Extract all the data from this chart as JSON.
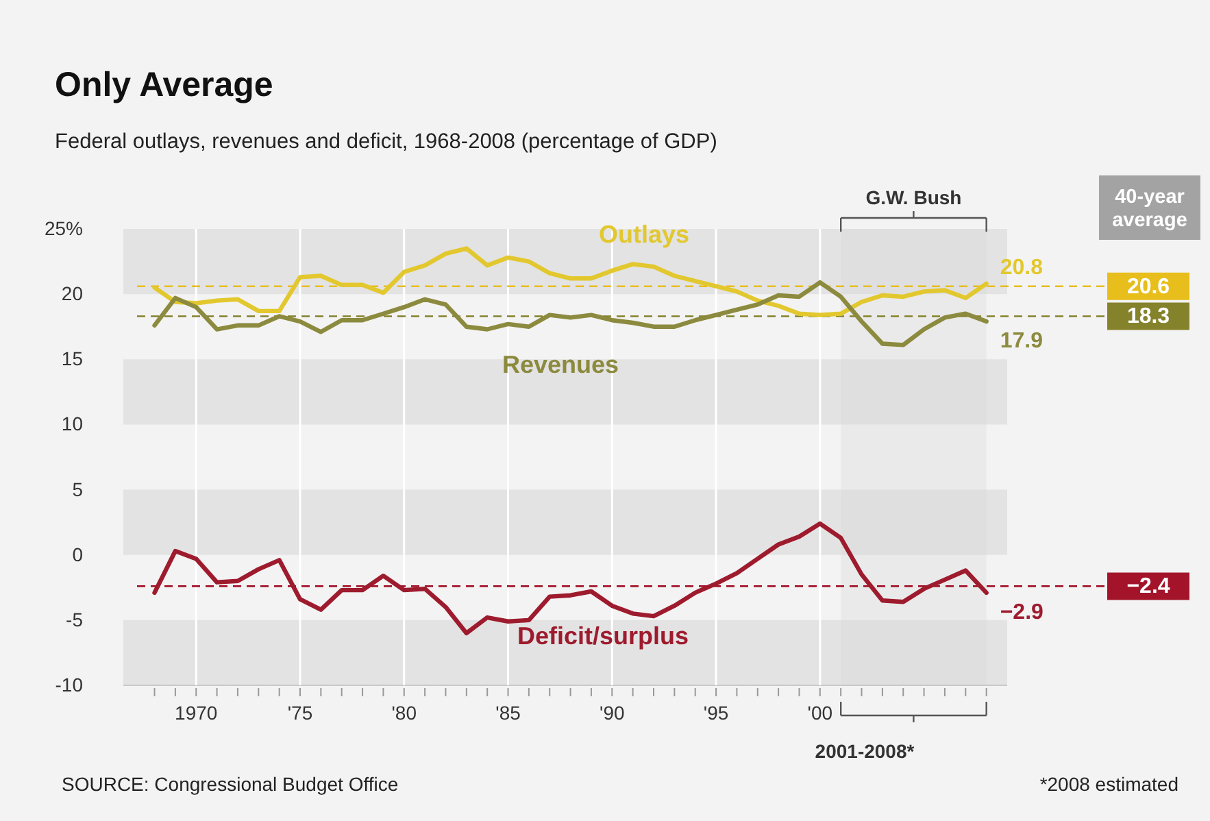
{
  "chart_data": {
    "type": "line",
    "title": "Only Average",
    "subtitle": "Federal outlays, revenues and deficit, 1968-2008 (percentage of GDP)",
    "x": [
      1968,
      1969,
      1970,
      1971,
      1972,
      1973,
      1974,
      1975,
      1976,
      1977,
      1978,
      1979,
      1980,
      1981,
      1982,
      1983,
      1984,
      1985,
      1986,
      1987,
      1988,
      1989,
      1990,
      1991,
      1992,
      1993,
      1994,
      1995,
      1996,
      1997,
      1998,
      1999,
      2000,
      2001,
      2002,
      2003,
      2004,
      2005,
      2006,
      2007,
      2008
    ],
    "series": [
      {
        "name": "Outlays",
        "color": "#e2c82e",
        "values": [
          20.5,
          19.4,
          19.3,
          19.5,
          19.6,
          18.7,
          18.7,
          21.3,
          21.4,
          20.7,
          20.7,
          20.1,
          21.7,
          22.2,
          23.1,
          23.5,
          22.2,
          22.8,
          22.5,
          21.6,
          21.2,
          21.2,
          21.8,
          22.3,
          22.1,
          21.4,
          21.0,
          20.6,
          20.2,
          19.5,
          19.1,
          18.5,
          18.4,
          18.5,
          19.4,
          19.9,
          19.8,
          20.2,
          20.3,
          19.7,
          20.8
        ],
        "value_labels": [
          null,
          null,
          null,
          null,
          null,
          null,
          null,
          null,
          null,
          null,
          null,
          null,
          null,
          null,
          null,
          null,
          null,
          null,
          null,
          null,
          null,
          null,
          null,
          null,
          null,
          null,
          null,
          null,
          null,
          null,
          null,
          null,
          null,
          null,
          null,
          null,
          null,
          null,
          null,
          null,
          "20.8"
        ]
      },
      {
        "name": "Revenues",
        "color": "#8c8a3e",
        "values": [
          17.6,
          19.7,
          19.0,
          17.3,
          17.6,
          17.6,
          18.3,
          17.9,
          17.1,
          18.0,
          18.0,
          18.5,
          19.0,
          19.6,
          19.2,
          17.5,
          17.3,
          17.7,
          17.5,
          18.4,
          18.2,
          18.4,
          18.0,
          17.8,
          17.5,
          17.5,
          18.0,
          18.4,
          18.8,
          19.2,
          19.9,
          19.8,
          20.9,
          19.8,
          17.9,
          16.2,
          16.1,
          17.3,
          18.2,
          18.5,
          17.9
        ],
        "value_labels": [
          null,
          null,
          null,
          null,
          null,
          null,
          null,
          null,
          null,
          null,
          null,
          null,
          null,
          null,
          null,
          null,
          null,
          null,
          null,
          null,
          null,
          null,
          null,
          null,
          null,
          null,
          null,
          null,
          null,
          null,
          null,
          null,
          null,
          null,
          null,
          null,
          null,
          null,
          null,
          null,
          "17.9"
        ]
      },
      {
        "name": "Deficit/surplus",
        "color": "#9e1b2e",
        "values": [
          -2.9,
          0.3,
          -0.3,
          -2.1,
          -2.0,
          -1.1,
          -0.4,
          -3.4,
          -4.2,
          -2.7,
          -2.7,
          -1.6,
          -2.7,
          -2.6,
          -4.0,
          -6.0,
          -4.8,
          -5.1,
          -5.0,
          -3.2,
          -3.1,
          -2.8,
          -3.9,
          -4.5,
          -4.7,
          -3.9,
          -2.9,
          -2.2,
          -1.4,
          -0.3,
          0.8,
          1.4,
          2.4,
          1.3,
          -1.5,
          -3.5,
          -3.6,
          -2.6,
          -1.9,
          -1.2,
          -2.9
        ],
        "value_labels": [
          null,
          null,
          null,
          null,
          null,
          null,
          null,
          null,
          null,
          null,
          null,
          null,
          null,
          null,
          null,
          null,
          null,
          null,
          null,
          null,
          null,
          null,
          null,
          null,
          null,
          null,
          null,
          null,
          null,
          null,
          null,
          null,
          null,
          null,
          null,
          null,
          null,
          null,
          null,
          null,
          "−2.9"
        ]
      }
    ],
    "xlim": [
      1966.5,
      2009
    ],
    "xticks": [
      {
        "value": 1968,
        "label": null
      },
      {
        "value": 1969,
        "label": null
      },
      {
        "value": 1970,
        "label": "1970"
      },
      {
        "value": 1971,
        "label": null
      },
      {
        "value": 1972,
        "label": null
      },
      {
        "value": 1973,
        "label": null
      },
      {
        "value": 1974,
        "label": null
      },
      {
        "value": 1975,
        "label": "'75"
      },
      {
        "value": 1976,
        "label": null
      },
      {
        "value": 1977,
        "label": null
      },
      {
        "value": 1978,
        "label": null
      },
      {
        "value": 1979,
        "label": null
      },
      {
        "value": 1980,
        "label": "'80"
      },
      {
        "value": 1981,
        "label": null
      },
      {
        "value": 1982,
        "label": null
      },
      {
        "value": 1983,
        "label": null
      },
      {
        "value": 1984,
        "label": null
      },
      {
        "value": 1985,
        "label": "'85"
      },
      {
        "value": 1986,
        "label": null
      },
      {
        "value": 1987,
        "label": null
      },
      {
        "value": 1988,
        "label": null
      },
      {
        "value": 1989,
        "label": null
      },
      {
        "value": 1990,
        "label": "'90"
      },
      {
        "value": 1991,
        "label": null
      },
      {
        "value": 1992,
        "label": null
      },
      {
        "value": 1993,
        "label": null
      },
      {
        "value": 1994,
        "label": null
      },
      {
        "value": 1995,
        "label": "'95"
      },
      {
        "value": 1996,
        "label": null
      },
      {
        "value": 1997,
        "label": null
      },
      {
        "value": 1998,
        "label": null
      },
      {
        "value": 1999,
        "label": null
      },
      {
        "value": 2000,
        "label": "'00"
      },
      {
        "value": 2001,
        "label": null
      },
      {
        "value": 2002,
        "label": null
      },
      {
        "value": 2003,
        "label": null
      },
      {
        "value": 2004,
        "label": null
      },
      {
        "value": 2005,
        "label": null
      },
      {
        "value": 2006,
        "label": null
      },
      {
        "value": 2007,
        "label": null
      },
      {
        "value": 2008,
        "label": null
      }
    ],
    "ylim": [
      -10,
      25
    ],
    "yticks": [
      {
        "value": 25,
        "label": "25%"
      },
      20,
      15,
      10,
      5,
      0,
      -5,
      -10
    ],
    "grid": "x",
    "line_style": "solid",
    "marker": "none",
    "ref_lines": [
      {
        "axis": "y",
        "value": 20.6,
        "label": "20.6",
        "color": "#e8be1c",
        "line_style": "dashed"
      },
      {
        "axis": "y",
        "value": 18.3,
        "label": "18.3",
        "color": "#85822c",
        "line_style": "dashed"
      },
      {
        "axis": "y",
        "value": -2.4,
        "label": "−2.4",
        "color": "#a3142a",
        "line_style": "dashed"
      }
    ],
    "bands": [
      {
        "axis": "y",
        "from": 20,
        "to": 25,
        "color": "#e3e3e3"
      },
      {
        "axis": "y",
        "from": 10,
        "to": 15,
        "color": "#e3e3e3"
      },
      {
        "axis": "y",
        "from": 0,
        "to": 5,
        "color": "#e3e3e3"
      },
      {
        "axis": "y",
        "from": -10,
        "to": -5,
        "color": "#e3e3e3"
      },
      {
        "axis": "x",
        "from": 2001,
        "to": 2008,
        "label": "G.W. Bush",
        "color": "#d8d8d8"
      }
    ],
    "annotations": [
      "40-year average",
      "2001-2008*",
      "SOURCE: Congressional Budget Office",
      "*2008 estimated"
    ]
  }
}
